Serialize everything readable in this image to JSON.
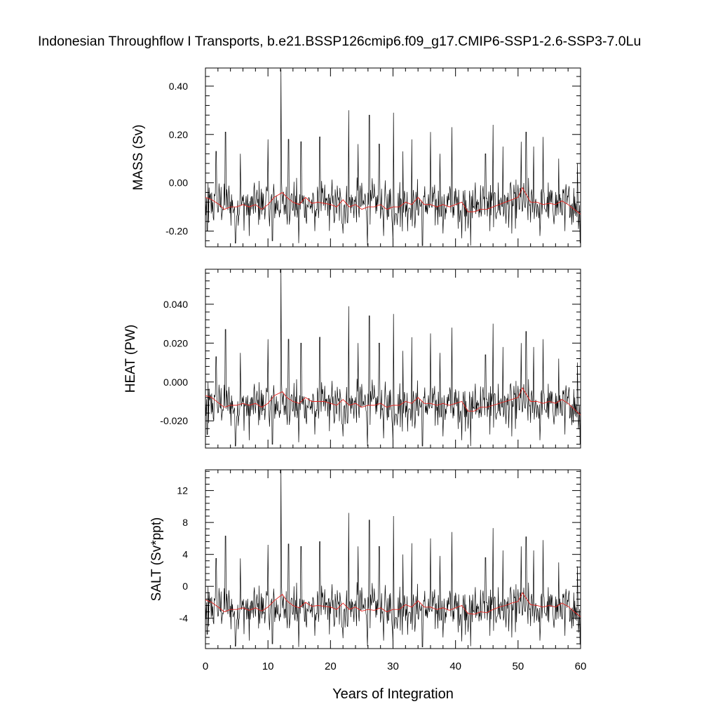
{
  "title": "Indonesian Throughflow I Transports, b.e21.BSSP126cmip6.f09_g17.CMIP6-SSP1-2.6-SSP3-7.0Lu",
  "chart_data": [
    {
      "type": "line",
      "ylabel": "MASS (Sv)",
      "xlabel": "",
      "xlim": [
        0,
        60
      ],
      "ylim": [
        -0.265,
        0.475
      ],
      "yticks": [
        -0.2,
        0.0,
        0.2,
        0.4
      ],
      "ytick_labels": [
        "-0.20",
        "0.00",
        "0.20",
        "0.40"
      ],
      "peaks": [
        [
          0.4,
          0.0
        ],
        [
          1.7,
          0.13
        ],
        [
          3.2,
          0.21
        ],
        [
          5.6,
          0.12
        ],
        [
          10.0,
          0.18
        ],
        [
          12.1,
          0.47
        ],
        [
          13.3,
          0.18
        ],
        [
          15.3,
          0.17
        ],
        [
          18.3,
          0.19
        ],
        [
          22.9,
          0.3
        ],
        [
          24.4,
          0.16
        ],
        [
          26.2,
          0.28
        ],
        [
          27.8,
          0.16
        ],
        [
          30.1,
          0.29
        ],
        [
          31.6,
          0.13
        ],
        [
          33.0,
          0.18
        ],
        [
          36.0,
          0.21
        ],
        [
          37.5,
          0.12
        ],
        [
          39.4,
          0.23
        ],
        [
          44.8,
          0.12
        ],
        [
          46.0,
          0.24
        ],
        [
          47.6,
          0.15
        ],
        [
          50.5,
          0.17
        ],
        [
          51.3,
          0.21
        ],
        [
          52.5,
          0.15
        ],
        [
          54.0,
          0.19
        ],
        [
          56.5,
          0.1
        ],
        [
          59.5,
          0.08
        ]
      ],
      "troughs": [
        [
          0.3,
          -0.2
        ],
        [
          4.8,
          -0.25
        ],
        [
          7.0,
          -0.22
        ],
        [
          10.7,
          -0.24
        ],
        [
          14.9,
          -0.25
        ],
        [
          17.5,
          -0.2
        ],
        [
          22.0,
          -0.21
        ],
        [
          25.9,
          -0.26
        ],
        [
          28.5,
          -0.22
        ],
        [
          30.0,
          -0.25
        ],
        [
          34.7,
          -0.26
        ],
        [
          38.0,
          -0.21
        ],
        [
          41.0,
          -0.23
        ],
        [
          42.4,
          -0.26
        ],
        [
          45.5,
          -0.2
        ],
        [
          49.0,
          -0.21
        ],
        [
          53.5,
          -0.22
        ],
        [
          57.5,
          -0.2
        ],
        [
          59.9,
          -0.25
        ]
      ],
      "base": -0.09,
      "amplitude": 0.115,
      "smoothed": [
        [
          0.0,
          -0.06
        ],
        [
          1.0,
          -0.07
        ],
        [
          2.2,
          -0.09
        ],
        [
          3.0,
          -0.11
        ],
        [
          4.0,
          -0.1
        ],
        [
          5.0,
          -0.1
        ],
        [
          6.0,
          -0.09
        ],
        [
          7.0,
          -0.1
        ],
        [
          8.0,
          -0.09
        ],
        [
          9.0,
          -0.11
        ],
        [
          10.0,
          -0.09
        ],
        [
          11.0,
          -0.06
        ],
        [
          12.3,
          -0.04
        ],
        [
          13.0,
          -0.06
        ],
        [
          14.0,
          -0.08
        ],
        [
          15.0,
          -0.09
        ],
        [
          16.0,
          -0.06
        ],
        [
          17.0,
          -0.085
        ],
        [
          18.0,
          -0.08
        ],
        [
          19.0,
          -0.085
        ],
        [
          20.0,
          -0.09
        ],
        [
          21.0,
          -0.1
        ],
        [
          22.0,
          -0.07
        ],
        [
          23.0,
          -0.1
        ],
        [
          24.0,
          -0.09
        ],
        [
          25.0,
          -0.11
        ],
        [
          26.0,
          -0.1
        ],
        [
          27.0,
          -0.1
        ],
        [
          28.0,
          -0.09
        ],
        [
          29.0,
          -0.11
        ],
        [
          30.0,
          -0.1
        ],
        [
          31.0,
          -0.1
        ],
        [
          32.0,
          -0.08
        ],
        [
          33.0,
          -0.09
        ],
        [
          34.0,
          -0.06
        ],
        [
          35.0,
          -0.09
        ],
        [
          36.0,
          -0.09
        ],
        [
          37.0,
          -0.1
        ],
        [
          38.0,
          -0.09
        ],
        [
          39.0,
          -0.1
        ],
        [
          40.0,
          -0.09
        ],
        [
          41.0,
          -0.08
        ],
        [
          42.0,
          -0.12
        ],
        [
          43.0,
          -0.12
        ],
        [
          44.0,
          -0.11
        ],
        [
          45.0,
          -0.11
        ],
        [
          46.0,
          -0.1
        ],
        [
          47.0,
          -0.09
        ],
        [
          48.0,
          -0.08
        ],
        [
          49.0,
          -0.07
        ],
        [
          50.0,
          -0.06
        ],
        [
          50.7,
          -0.02
        ],
        [
          52.0,
          -0.08
        ],
        [
          53.0,
          -0.08
        ],
        [
          54.0,
          -0.09
        ],
        [
          55.0,
          -0.085
        ],
        [
          56.0,
          -0.09
        ],
        [
          57.0,
          -0.075
        ],
        [
          58.0,
          -0.09
        ],
        [
          59.0,
          -0.11
        ],
        [
          60.0,
          -0.13
        ]
      ]
    },
    {
      "type": "line",
      "ylabel": "HEAT (PW)",
      "xlabel": "",
      "xlim": [
        0,
        60
      ],
      "ylim": [
        -0.034,
        0.058
      ],
      "yticks": [
        -0.02,
        0.0,
        0.02,
        0.04
      ],
      "ytick_labels": [
        "-0.020",
        "0.000",
        "0.020",
        "0.040"
      ],
      "peaks": [
        [
          0.4,
          0.0
        ],
        [
          1.7,
          0.013
        ],
        [
          3.2,
          0.027
        ],
        [
          5.6,
          0.015
        ],
        [
          10.0,
          0.022
        ],
        [
          12.1,
          0.058
        ],
        [
          13.3,
          0.022
        ],
        [
          15.3,
          0.02
        ],
        [
          18.3,
          0.023
        ],
        [
          22.9,
          0.039
        ],
        [
          24.4,
          0.02
        ],
        [
          26.2,
          0.034
        ],
        [
          27.8,
          0.02
        ],
        [
          30.1,
          0.035
        ],
        [
          31.6,
          0.016
        ],
        [
          33.0,
          0.023
        ],
        [
          36.0,
          0.025
        ],
        [
          37.5,
          0.015
        ],
        [
          39.4,
          0.028
        ],
        [
          44.8,
          0.014
        ],
        [
          46.0,
          0.03
        ],
        [
          47.6,
          0.018
        ],
        [
          50.5,
          0.02
        ],
        [
          51.3,
          0.026
        ],
        [
          52.5,
          0.018
        ],
        [
          54.0,
          0.022
        ],
        [
          56.5,
          0.012
        ],
        [
          59.5,
          0.01
        ]
      ],
      "troughs": [
        [
          0.3,
          -0.027
        ],
        [
          4.8,
          -0.033
        ],
        [
          7.0,
          -0.03
        ],
        [
          10.7,
          -0.032
        ],
        [
          14.9,
          -0.031
        ],
        [
          17.5,
          -0.027
        ],
        [
          22.0,
          -0.028
        ],
        [
          25.9,
          -0.033
        ],
        [
          28.5,
          -0.029
        ],
        [
          30.0,
          -0.032
        ],
        [
          34.7,
          -0.033
        ],
        [
          38.0,
          -0.028
        ],
        [
          41.0,
          -0.03
        ],
        [
          42.4,
          -0.033
        ],
        [
          45.5,
          -0.027
        ],
        [
          49.0,
          -0.028
        ],
        [
          53.5,
          -0.03
        ],
        [
          57.5,
          -0.027
        ],
        [
          59.9,
          -0.032
        ]
      ],
      "base": -0.012,
      "amplitude": 0.014,
      "smoothed": [
        [
          0.0,
          -0.007
        ],
        [
          1.0,
          -0.008
        ],
        [
          2.2,
          -0.011
        ],
        [
          3.0,
          -0.013
        ],
        [
          4.0,
          -0.012
        ],
        [
          5.0,
          -0.012
        ],
        [
          6.0,
          -0.011
        ],
        [
          7.0,
          -0.012
        ],
        [
          8.0,
          -0.011
        ],
        [
          9.0,
          -0.013
        ],
        [
          10.0,
          -0.011
        ],
        [
          11.0,
          -0.007
        ],
        [
          12.3,
          -0.005
        ],
        [
          13.0,
          -0.008
        ],
        [
          14.0,
          -0.01
        ],
        [
          15.0,
          -0.011
        ],
        [
          16.0,
          -0.008
        ],
        [
          17.0,
          -0.01
        ],
        [
          18.0,
          -0.01
        ],
        [
          19.0,
          -0.01
        ],
        [
          20.0,
          -0.011
        ],
        [
          21.0,
          -0.012
        ],
        [
          22.0,
          -0.009
        ],
        [
          23.0,
          -0.012
        ],
        [
          24.0,
          -0.011
        ],
        [
          25.0,
          -0.013
        ],
        [
          26.0,
          -0.012
        ],
        [
          27.0,
          -0.012
        ],
        [
          28.0,
          -0.011
        ],
        [
          29.0,
          -0.013
        ],
        [
          30.0,
          -0.012
        ],
        [
          31.0,
          -0.012
        ],
        [
          32.0,
          -0.01
        ],
        [
          33.0,
          -0.011
        ],
        [
          34.0,
          -0.008
        ],
        [
          35.0,
          -0.011
        ],
        [
          36.0,
          -0.011
        ],
        [
          37.0,
          -0.012
        ],
        [
          38.0,
          -0.011
        ],
        [
          39.0,
          -0.012
        ],
        [
          40.0,
          -0.011
        ],
        [
          41.0,
          -0.01
        ],
        [
          42.0,
          -0.015
        ],
        [
          43.0,
          -0.015
        ],
        [
          44.0,
          -0.013
        ],
        [
          45.0,
          -0.013
        ],
        [
          46.0,
          -0.012
        ],
        [
          47.0,
          -0.011
        ],
        [
          48.0,
          -0.01
        ],
        [
          49.0,
          -0.009
        ],
        [
          50.0,
          -0.008
        ],
        [
          50.7,
          -0.003
        ],
        [
          52.0,
          -0.01
        ],
        [
          53.0,
          -0.01
        ],
        [
          54.0,
          -0.011
        ],
        [
          55.0,
          -0.01
        ],
        [
          56.0,
          -0.011
        ],
        [
          57.0,
          -0.009
        ],
        [
          58.0,
          -0.011
        ],
        [
          59.0,
          -0.014
        ],
        [
          60.0,
          -0.017
        ]
      ]
    },
    {
      "type": "line",
      "ylabel": "SALT (Sv*ppt)",
      "xlabel": "Years of Integration",
      "xlim": [
        0,
        60
      ],
      "ylim": [
        -7.8,
        14.6
      ],
      "yticks": [
        -4,
        0,
        4,
        8,
        12
      ],
      "ytick_labels": [
        "-4",
        "0",
        "4",
        "8",
        "12"
      ],
      "xticks": [
        0,
        10,
        20,
        30,
        40,
        50,
        60
      ],
      "xtick_labels": [
        "0",
        "10",
        "20",
        "30",
        "40",
        "50",
        "60"
      ],
      "peaks": [
        [
          0.4,
          0.0
        ],
        [
          1.7,
          3.5
        ],
        [
          3.2,
          6.3
        ],
        [
          5.6,
          3.5
        ],
        [
          10.0,
          5.2
        ],
        [
          12.1,
          14.6
        ],
        [
          13.3,
          5.3
        ],
        [
          15.3,
          5.0
        ],
        [
          18.3,
          5.6
        ],
        [
          22.9,
          9.2
        ],
        [
          24.4,
          5.0
        ],
        [
          26.2,
          8.3
        ],
        [
          27.8,
          5.0
        ],
        [
          30.1,
          8.8
        ],
        [
          31.6,
          4.0
        ],
        [
          33.0,
          5.4
        ],
        [
          36.0,
          6.0
        ],
        [
          37.5,
          3.8
        ],
        [
          39.4,
          6.8
        ],
        [
          44.8,
          3.6
        ],
        [
          46.0,
          7.3
        ],
        [
          47.6,
          4.5
        ],
        [
          50.5,
          5.0
        ],
        [
          51.3,
          6.2
        ],
        [
          52.5,
          4.5
        ],
        [
          54.0,
          5.8
        ],
        [
          56.5,
          3.0
        ],
        [
          59.5,
          2.5
        ]
      ],
      "troughs": [
        [
          0.3,
          -6.0
        ],
        [
          4.8,
          -7.5
        ],
        [
          7.0,
          -6.8
        ],
        [
          10.7,
          -7.2
        ],
        [
          14.9,
          -7.6
        ],
        [
          17.5,
          -6.2
        ],
        [
          22.0,
          -6.5
        ],
        [
          25.9,
          -7.5
        ],
        [
          28.5,
          -6.8
        ],
        [
          30.0,
          -7.3
        ],
        [
          34.7,
          -7.6
        ],
        [
          38.0,
          -6.4
        ],
        [
          41.0,
          -6.9
        ],
        [
          42.4,
          -7.5
        ],
        [
          45.5,
          -6.2
        ],
        [
          49.0,
          -6.4
        ],
        [
          53.5,
          -6.8
        ],
        [
          57.5,
          -6.2
        ],
        [
          59.9,
          -7.3
        ]
      ],
      "base": -2.8,
      "amplitude": 3.4,
      "smoothed": [
        [
          0.0,
          -1.7
        ],
        [
          1.0,
          -2.0
        ],
        [
          2.2,
          -2.7
        ],
        [
          3.0,
          -3.2
        ],
        [
          4.0,
          -2.9
        ],
        [
          5.0,
          -2.9
        ],
        [
          6.0,
          -2.7
        ],
        [
          7.0,
          -3.0
        ],
        [
          8.0,
          -2.7
        ],
        [
          9.0,
          -3.1
        ],
        [
          10.0,
          -2.6
        ],
        [
          11.0,
          -1.8
        ],
        [
          12.3,
          -1.0
        ],
        [
          13.0,
          -1.8
        ],
        [
          14.0,
          -2.4
        ],
        [
          15.0,
          -2.7
        ],
        [
          16.0,
          -2.0
        ],
        [
          17.0,
          -2.5
        ],
        [
          18.0,
          -2.4
        ],
        [
          19.0,
          -2.5
        ],
        [
          20.0,
          -2.6
        ],
        [
          21.0,
          -2.9
        ],
        [
          22.0,
          -2.1
        ],
        [
          23.0,
          -2.9
        ],
        [
          24.0,
          -2.6
        ],
        [
          25.0,
          -3.1
        ],
        [
          26.0,
          -2.9
        ],
        [
          27.0,
          -3.0
        ],
        [
          28.0,
          -2.7
        ],
        [
          29.0,
          -3.2
        ],
        [
          30.0,
          -2.9
        ],
        [
          31.0,
          -2.9
        ],
        [
          32.0,
          -2.3
        ],
        [
          33.0,
          -2.6
        ],
        [
          34.0,
          -1.8
        ],
        [
          35.0,
          -2.6
        ],
        [
          36.0,
          -2.6
        ],
        [
          37.0,
          -2.9
        ],
        [
          38.0,
          -2.7
        ],
        [
          39.0,
          -3.0
        ],
        [
          40.0,
          -2.7
        ],
        [
          41.0,
          -2.4
        ],
        [
          42.0,
          -3.4
        ],
        [
          43.0,
          -3.5
        ],
        [
          44.0,
          -3.2
        ],
        [
          45.0,
          -3.3
        ],
        [
          46.0,
          -2.9
        ],
        [
          47.0,
          -2.6
        ],
        [
          48.0,
          -2.4
        ],
        [
          49.0,
          -2.1
        ],
        [
          50.0,
          -1.9
        ],
        [
          50.7,
          -0.8
        ],
        [
          52.0,
          -2.3
        ],
        [
          53.0,
          -2.4
        ],
        [
          54.0,
          -2.6
        ],
        [
          55.0,
          -2.4
        ],
        [
          56.0,
          -2.6
        ],
        [
          57.0,
          -2.1
        ],
        [
          58.0,
          -2.5
        ],
        [
          59.0,
          -3.2
        ],
        [
          60.0,
          -3.8
        ]
      ]
    }
  ]
}
